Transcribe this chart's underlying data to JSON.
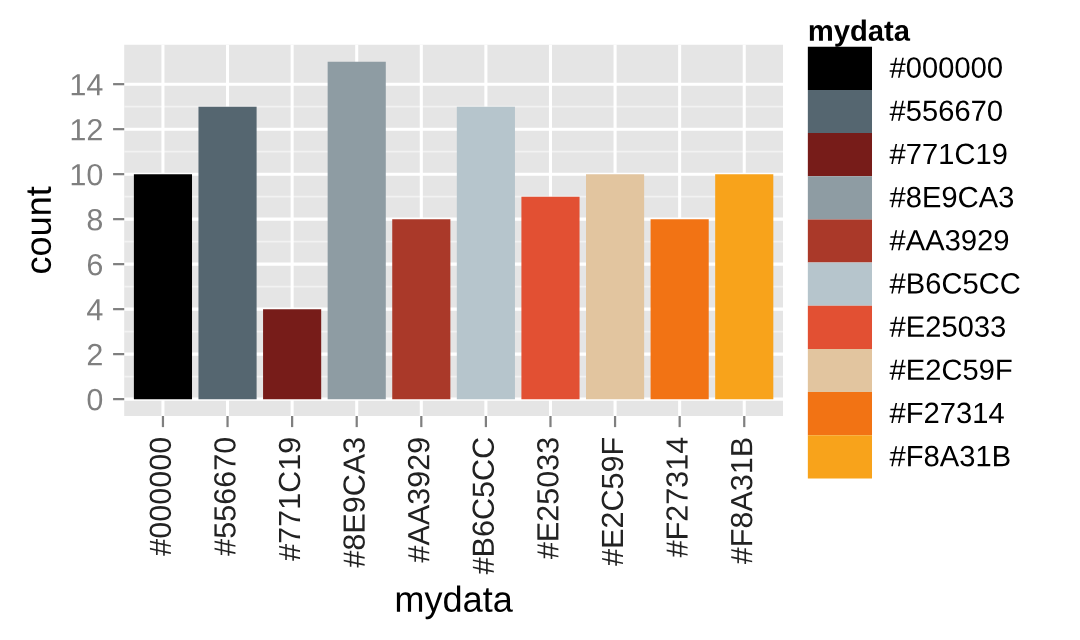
{
  "chart_data": {
    "type": "bar",
    "xlabel": "mydata",
    "ylabel": "count",
    "legend_title": "mydata",
    "categories": [
      "#000000",
      "#556670",
      "#771C19",
      "#8E9CA3",
      "#AA3929",
      "#B6C5CC",
      "#E25033",
      "#E2C59F",
      "#F27314",
      "#F8A31B"
    ],
    "series": [
      {
        "name": "#000000",
        "color": "#000000",
        "values": [
          10,
          null,
          null,
          null,
          null,
          null,
          null,
          null,
          null,
          null
        ]
      },
      {
        "name": "#556670",
        "color": "#556670",
        "values": [
          null,
          13,
          null,
          null,
          null,
          null,
          null,
          null,
          null,
          null
        ]
      },
      {
        "name": "#771C19",
        "color": "#771c19",
        "values": [
          null,
          null,
          4,
          null,
          null,
          null,
          null,
          null,
          null,
          null
        ]
      },
      {
        "name": "#8E9CA3",
        "color": "#8e9ca3",
        "values": [
          null,
          null,
          null,
          15,
          null,
          null,
          null,
          null,
          null,
          null
        ]
      },
      {
        "name": "#AA3929",
        "color": "#aa3929",
        "values": [
          null,
          null,
          null,
          null,
          8,
          null,
          null,
          null,
          null,
          null
        ]
      },
      {
        "name": "#B6C5CC",
        "color": "#b6c5cc",
        "values": [
          null,
          null,
          null,
          null,
          null,
          13,
          null,
          null,
          null,
          null
        ]
      },
      {
        "name": "#E25033",
        "color": "#e25033",
        "values": [
          null,
          null,
          null,
          null,
          null,
          null,
          9,
          null,
          null,
          null
        ]
      },
      {
        "name": "#E2C59F",
        "color": "#e2c59f",
        "values": [
          null,
          null,
          null,
          null,
          null,
          null,
          null,
          10,
          null,
          null
        ]
      },
      {
        "name": "#F27314",
        "color": "#f27314",
        "values": [
          null,
          null,
          null,
          null,
          null,
          null,
          null,
          null,
          8,
          null
        ]
      },
      {
        "name": "#F8A31B",
        "color": "#f8a31b",
        "values": [
          null,
          null,
          null,
          null,
          null,
          null,
          null,
          null,
          null,
          10
        ]
      }
    ],
    "ylim": [
      -0.75,
      15.75
    ],
    "yticks": [
      0,
      2,
      4,
      6,
      8,
      10,
      12,
      14
    ],
    "grid": true,
    "legend": "right"
  }
}
